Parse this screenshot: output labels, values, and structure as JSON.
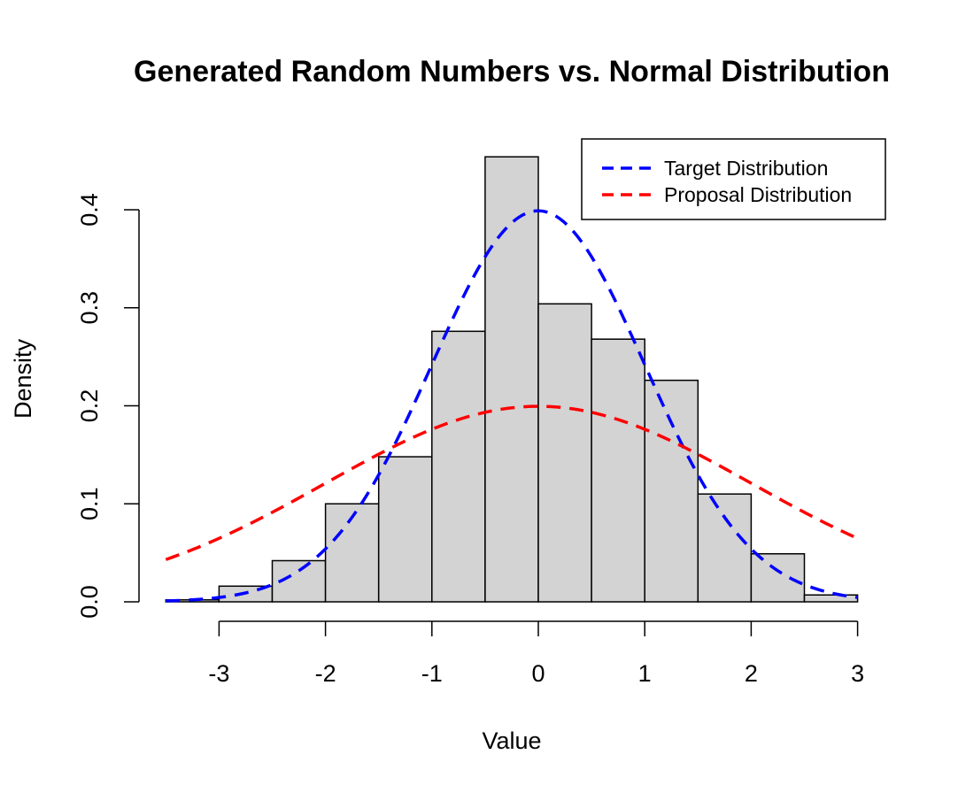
{
  "chart_data": {
    "type": "bar",
    "title": "Generated Random Numbers vs. Normal Distribution",
    "xlabel": "Value",
    "ylabel": "Density",
    "xlim": [
      -3.6,
      3.0
    ],
    "ylim": [
      0,
      0.45
    ],
    "x_ticks": [
      -3,
      -2,
      -1,
      0,
      1,
      2,
      3
    ],
    "x_tick_labels": [
      "-3",
      "-2",
      "-1",
      "0",
      "1",
      "2",
      "3"
    ],
    "y_ticks": [
      0.0,
      0.1,
      0.2,
      0.3,
      0.4
    ],
    "y_tick_labels": [
      "0.0",
      "0.1",
      "0.2",
      "0.3",
      "0.4"
    ],
    "grid": false,
    "legend_position": "top-right",
    "histogram": {
      "bin_edges": [
        -3.5,
        -3.0,
        -2.5,
        -2.0,
        -1.5,
        -1.0,
        -0.5,
        0.0,
        0.5,
        1.0,
        1.5,
        2.0,
        2.5,
        3.0
      ],
      "densities": [
        0.002,
        0.016,
        0.042,
        0.1,
        0.148,
        0.276,
        0.454,
        0.304,
        0.268,
        0.226,
        0.11,
        0.049,
        0.007
      ],
      "fill": "#d3d3d3",
      "stroke": "#000000"
    },
    "series": [
      {
        "name": "Target Distribution",
        "kind": "normal-density",
        "mean": 0,
        "sd": 1,
        "color": "#0000ff",
        "dash": "dashed"
      },
      {
        "name": "Proposal Distribution",
        "kind": "normal-density",
        "mean": 0,
        "sd": 2,
        "color": "#ff0000",
        "dash": "dashed"
      }
    ],
    "curve_range": [
      -3.5,
      3.0
    ]
  }
}
